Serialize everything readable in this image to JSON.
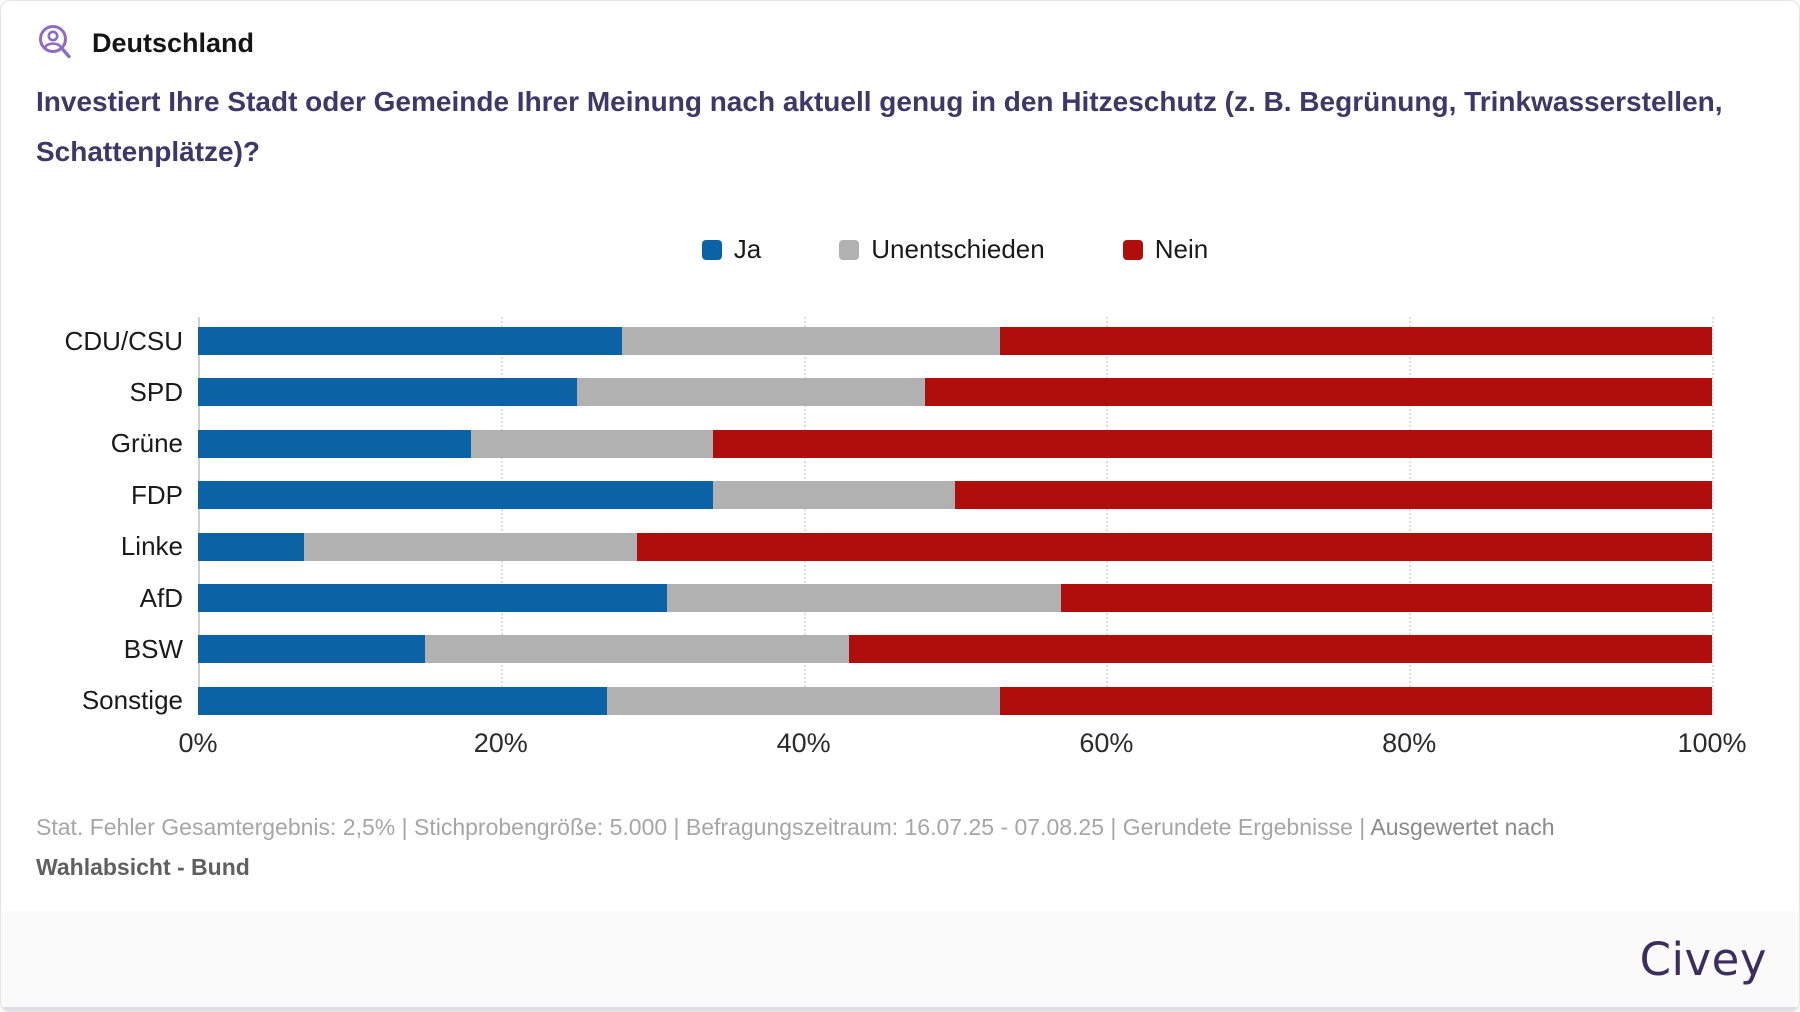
{
  "header": {
    "region_label": "Deutschland",
    "icon": "person-search"
  },
  "question": "Investiert Ihre Stadt oder Gemeinde Ihrer Meinung nach aktuell genug in den Hitzeschutz (z. B. Begrünung, Trinkwasserstellen, Schattenplätze)?",
  "colors": {
    "ja": "#0b63a5",
    "unentschieden": "#b1b1b1",
    "nein": "#b00d0d",
    "title_purple": "#3e3767",
    "icon_purple": "#8e6cc0",
    "brand_purple": "#3b2e5c"
  },
  "legend": [
    {
      "label": "Ja",
      "color": "#0b63a5"
    },
    {
      "label": "Unentschieden",
      "color": "#b1b1b1"
    },
    {
      "label": "Nein",
      "color": "#b00d0d"
    }
  ],
  "chart_data": {
    "type": "bar",
    "orientation": "horizontal",
    "stacked": true,
    "unit": "percent",
    "categories": [
      "CDU/CSU",
      "SPD",
      "Grüne",
      "FDP",
      "Linke",
      "AfD",
      "BSW",
      "Sonstige"
    ],
    "series": [
      {
        "name": "Ja",
        "color": "#0b63a5",
        "values": [
          28,
          25,
          18,
          34,
          7,
          31,
          15,
          27
        ]
      },
      {
        "name": "Unentschieden",
        "color": "#b1b1b1",
        "values": [
          25,
          23,
          16,
          16,
          22,
          26,
          28,
          26
        ]
      },
      {
        "name": "Nein",
        "color": "#b00d0d",
        "values": [
          47,
          52,
          66,
          50,
          71,
          43,
          57,
          47
        ]
      }
    ],
    "x_axis": {
      "range": [
        0,
        100
      ],
      "ticks": [
        "0%",
        "20%",
        "40%",
        "60%",
        "80%",
        "100%"
      ],
      "grid": true
    },
    "legend_position": "top"
  },
  "footnote": {
    "stats": "Stat. Fehler Gesamtergebnis: 2,5% | Stichprobengröße: 5.000 | Befragungszeitraum: 16.07.25 - 07.08.25 | Gerundete Ergebnisse | ",
    "analysis_prefix": " Ausgewertet nach ",
    "analysis_bold": "Wahlabsicht - Bund"
  },
  "footer": {
    "brand": "Civey"
  }
}
